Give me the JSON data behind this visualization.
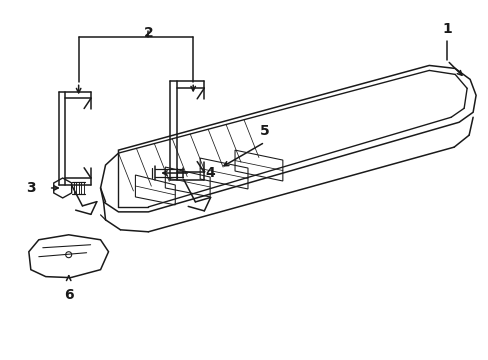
{
  "background_color": "#ffffff",
  "line_color": "#1a1a1a",
  "line_width": 1.1,
  "fig_width": 4.89,
  "fig_height": 3.6,
  "dpi": 100
}
